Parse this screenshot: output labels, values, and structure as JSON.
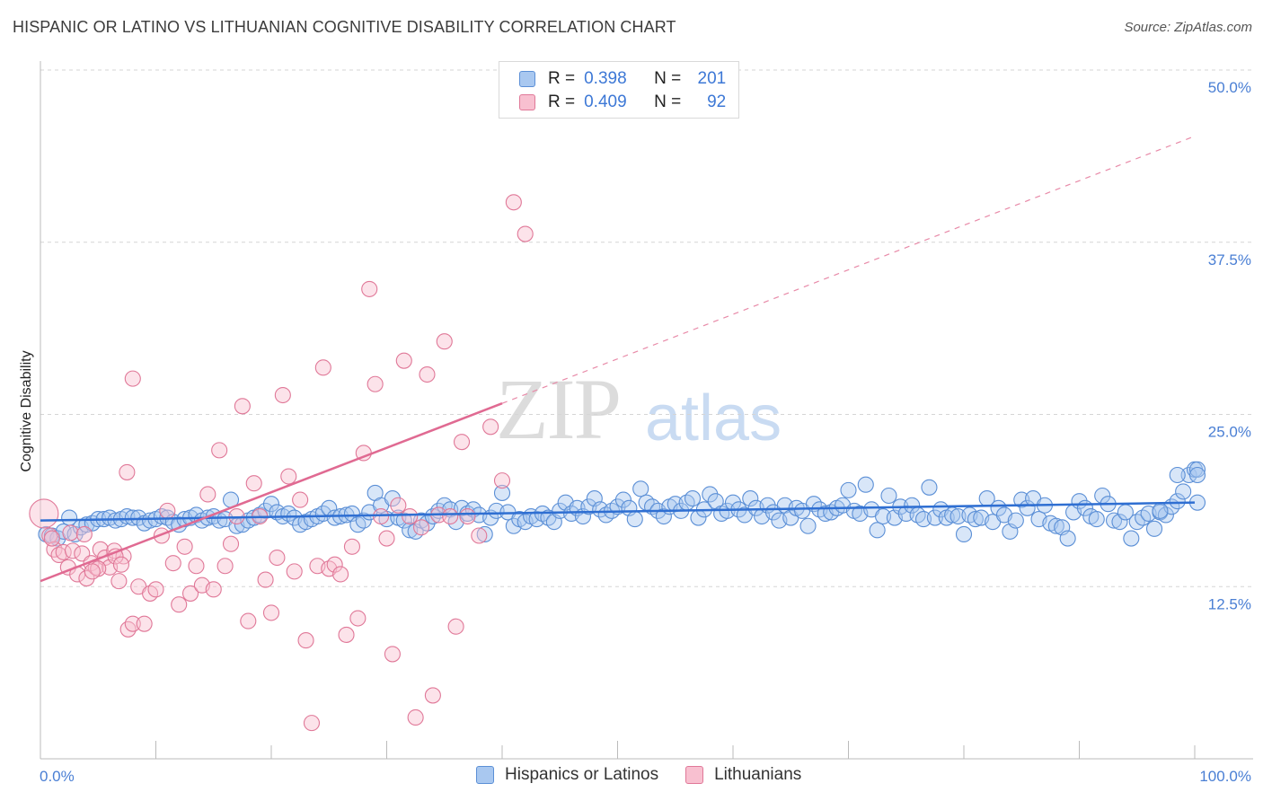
{
  "title": "HISPANIC OR LATINO VS LITHUANIAN COGNITIVE DISABILITY CORRELATION CHART",
  "source": "Source: ZipAtlas.com",
  "watermark": {
    "zip": "ZIP",
    "atlas": "atlas"
  },
  "legend": {
    "rows": [
      {
        "r_label": "R =",
        "r_value": "0.398",
        "n_label": "N =",
        "n_value": "201",
        "color": "#a9c8f0",
        "border": "#5b8fd6"
      },
      {
        "r_label": "R =",
        "r_value": "0.409",
        "n_label": "N =",
        "n_value": "92",
        "color": "#f8c0d0",
        "border": "#e07898"
      }
    ]
  },
  "bottom_legend": [
    {
      "label": "Hispanics or Latinos",
      "color": "#a9c8f0",
      "border": "#5b8fd6"
    },
    {
      "label": "Lithuanians",
      "color": "#f8c0d0",
      "border": "#e07898"
    }
  ],
  "chart_data": {
    "type": "scatter",
    "xlabel": "",
    "ylabel": "Cognitive Disability",
    "xlim": [
      0,
      100
    ],
    "ylim": [
      0,
      50
    ],
    "x_tick_labels": [
      "0.0%",
      "100.0%"
    ],
    "y_ticks": [
      12.5,
      25.0,
      37.5,
      50.0
    ],
    "y_tick_labels": [
      "12.5%",
      "25.0%",
      "37.5%",
      "50.0%"
    ],
    "grid": true,
    "series": [
      {
        "name": "Hispanics or Latinos",
        "color": "#5b8fd6",
        "fill": "rgba(169,200,240,0.45)",
        "trend": {
          "x0": 0,
          "y0": 17.3,
          "x1": 100,
          "y1": 18.6,
          "dashed_from": null
        },
        "points": [
          [
            0.5,
            16.3
          ],
          [
            1,
            16.2
          ],
          [
            1.5,
            16.0
          ],
          [
            2,
            16.5
          ],
          [
            2.5,
            17.5
          ],
          [
            3,
            16.3
          ],
          [
            3.5,
            16.8
          ],
          [
            4,
            17.0
          ],
          [
            4.5,
            17.1
          ],
          [
            5,
            17.4
          ],
          [
            5.5,
            17.4
          ],
          [
            6,
            17.5
          ],
          [
            6.5,
            17.3
          ],
          [
            7,
            17.4
          ],
          [
            7.5,
            17.6
          ],
          [
            8,
            17.5
          ],
          [
            8.5,
            17.5
          ],
          [
            9,
            17.1
          ],
          [
            9.5,
            17.3
          ],
          [
            10,
            17.4
          ],
          [
            10.5,
            17.6
          ],
          [
            11,
            17.5
          ],
          [
            11.5,
            17.2
          ],
          [
            12,
            17.0
          ],
          [
            12.5,
            17.4
          ],
          [
            13,
            17.5
          ],
          [
            13.5,
            17.7
          ],
          [
            14,
            17.3
          ],
          [
            14.5,
            17.5
          ],
          [
            15,
            17.6
          ],
          [
            15.5,
            17.3
          ],
          [
            16,
            17.4
          ],
          [
            16.5,
            18.8
          ],
          [
            17,
            16.9
          ],
          [
            17.5,
            17.0
          ],
          [
            18,
            17.3
          ],
          [
            18.5,
            17.5
          ],
          [
            19,
            17.7
          ],
          [
            19.5,
            18.0
          ],
          [
            20,
            18.5
          ],
          [
            20.5,
            17.9
          ],
          [
            21,
            17.6
          ],
          [
            21.5,
            17.8
          ],
          [
            22,
            17.5
          ],
          [
            22.5,
            17.0
          ],
          [
            23,
            17.2
          ],
          [
            23.5,
            17.4
          ],
          [
            24,
            17.6
          ],
          [
            24.5,
            17.8
          ],
          [
            25,
            18.2
          ],
          [
            25.5,
            17.5
          ],
          [
            26,
            17.6
          ],
          [
            26.5,
            17.7
          ],
          [
            27,
            17.8
          ],
          [
            27.5,
            17.0
          ],
          [
            28,
            17.3
          ],
          [
            28.5,
            17.9
          ],
          [
            29,
            19.3
          ],
          [
            29.5,
            18.4
          ],
          [
            30,
            17.4
          ],
          [
            30.5,
            18.9
          ],
          [
            31,
            17.5
          ],
          [
            31.5,
            17.3
          ],
          [
            32,
            16.6
          ],
          [
            32.5,
            16.5
          ],
          [
            33,
            17.3
          ],
          [
            33.5,
            17.1
          ],
          [
            34,
            17.6
          ],
          [
            34.5,
            18.0
          ],
          [
            35,
            18.4
          ],
          [
            35.5,
            18.1
          ],
          [
            36,
            17.2
          ],
          [
            36.5,
            18.2
          ],
          [
            37,
            17.8
          ],
          [
            37.5,
            18.1
          ],
          [
            38,
            17.7
          ],
          [
            38.5,
            16.3
          ],
          [
            39,
            17.5
          ],
          [
            39.5,
            18.0
          ],
          [
            40,
            19.3
          ],
          [
            40.5,
            17.9
          ],
          [
            41,
            16.9
          ],
          [
            41.5,
            17.4
          ],
          [
            42,
            17.2
          ],
          [
            42.5,
            17.6
          ],
          [
            43,
            17.4
          ],
          [
            43.5,
            17.8
          ],
          [
            44,
            17.5
          ],
          [
            44.5,
            17.2
          ],
          [
            45,
            18.0
          ],
          [
            45.5,
            18.6
          ],
          [
            46,
            17.8
          ],
          [
            46.5,
            18.2
          ],
          [
            47,
            17.6
          ],
          [
            47.5,
            18.3
          ],
          [
            48,
            18.9
          ],
          [
            48.5,
            18.1
          ],
          [
            49,
            17.7
          ],
          [
            49.5,
            18.0
          ],
          [
            50,
            18.3
          ],
          [
            50.5,
            18.8
          ],
          [
            51,
            18.2
          ],
          [
            51.5,
            17.4
          ],
          [
            52,
            19.6
          ],
          [
            52.5,
            18.6
          ],
          [
            53,
            18.3
          ],
          [
            53.5,
            18.0
          ],
          [
            54,
            17.6
          ],
          [
            54.5,
            18.3
          ],
          [
            55,
            18.5
          ],
          [
            55.5,
            18.0
          ],
          [
            56,
            18.6
          ],
          [
            56.5,
            18.9
          ],
          [
            57,
            17.5
          ],
          [
            57.5,
            18.1
          ],
          [
            58,
            19.2
          ],
          [
            58.5,
            18.7
          ],
          [
            59,
            17.8
          ],
          [
            59.5,
            18.0
          ],
          [
            60,
            18.6
          ],
          [
            60.5,
            18.1
          ],
          [
            61,
            17.7
          ],
          [
            61.5,
            18.9
          ],
          [
            62,
            18.2
          ],
          [
            62.5,
            17.6
          ],
          [
            63,
            18.4
          ],
          [
            63.5,
            17.9
          ],
          [
            64,
            17.3
          ],
          [
            64.5,
            18.4
          ],
          [
            65,
            17.5
          ],
          [
            65.5,
            18.2
          ],
          [
            66,
            18.0
          ],
          [
            66.5,
            16.9
          ],
          [
            67,
            18.5
          ],
          [
            67.5,
            18.1
          ],
          [
            68,
            17.8
          ],
          [
            68.5,
            17.9
          ],
          [
            69,
            18.2
          ],
          [
            69.5,
            18.4
          ],
          [
            70,
            19.5
          ],
          [
            70.5,
            18.0
          ],
          [
            71,
            17.8
          ],
          [
            71.5,
            19.9
          ],
          [
            72,
            18.1
          ],
          [
            72.5,
            16.6
          ],
          [
            73,
            17.6
          ],
          [
            73.5,
            19.1
          ],
          [
            74,
            17.5
          ],
          [
            74.5,
            18.3
          ],
          [
            75,
            17.8
          ],
          [
            75.5,
            18.4
          ],
          [
            76,
            17.7
          ],
          [
            76.5,
            17.4
          ],
          [
            77,
            19.7
          ],
          [
            77.5,
            17.5
          ],
          [
            78,
            18.1
          ],
          [
            78.5,
            17.5
          ],
          [
            79,
            17.7
          ],
          [
            79.5,
            17.6
          ],
          [
            80,
            16.3
          ],
          [
            80.5,
            17.7
          ],
          [
            81,
            17.4
          ],
          [
            81.5,
            17.5
          ],
          [
            82,
            18.9
          ],
          [
            82.5,
            17.2
          ],
          [
            83,
            18.2
          ],
          [
            83.5,
            17.7
          ],
          [
            84,
            16.5
          ],
          [
            84.5,
            17.3
          ],
          [
            85,
            18.8
          ],
          [
            85.5,
            18.2
          ],
          [
            86,
            18.9
          ],
          [
            86.5,
            17.4
          ],
          [
            87,
            18.4
          ],
          [
            87.5,
            17.1
          ],
          [
            88,
            16.9
          ],
          [
            88.5,
            16.8
          ],
          [
            89,
            16.0
          ],
          [
            89.5,
            17.9
          ],
          [
            90,
            18.7
          ],
          [
            90.5,
            18.2
          ],
          [
            91,
            17.6
          ],
          [
            91.5,
            17.4
          ],
          [
            92,
            19.1
          ],
          [
            92.5,
            18.5
          ],
          [
            93,
            17.3
          ],
          [
            93.5,
            17.2
          ],
          [
            94,
            17.9
          ],
          [
            94.5,
            16.0
          ],
          [
            95,
            17.2
          ],
          [
            95.5,
            17.5
          ],
          [
            96,
            17.8
          ],
          [
            96.5,
            16.7
          ],
          [
            97,
            17.9
          ],
          [
            97.5,
            17.7
          ],
          [
            98,
            18.3
          ],
          [
            98.5,
            18.7
          ],
          [
            99,
            19.4
          ],
          [
            99.5,
            20.6
          ],
          [
            100,
            21.0
          ],
          [
            100.5,
            21.0
          ],
          [
            101,
            20.6
          ],
          [
            101.5,
            18.6
          ],
          [
            97,
            18.0
          ],
          [
            98.5,
            20.6
          ]
        ]
      },
      {
        "name": "Lithuanians",
        "color": "#e07898",
        "fill": "rgba(248,192,208,0.45)",
        "trend": {
          "x0": 0,
          "y0": 12.9,
          "x1": 40,
          "y1": 25.8,
          "dashed_to_x": 100,
          "dashed_to_y": 45.2
        },
        "points": [
          [
            0.3,
            17.8
          ],
          [
            0.8,
            16.2
          ],
          [
            1.2,
            15.2
          ],
          [
            1.6,
            14.8
          ],
          [
            2.0,
            15.0
          ],
          [
            2.4,
            13.9
          ],
          [
            2.8,
            15.1
          ],
          [
            3.2,
            13.4
          ],
          [
            3.6,
            14.9
          ],
          [
            4.0,
            13.1
          ],
          [
            4.4,
            14.2
          ],
          [
            4.8,
            13.9
          ],
          [
            5.2,
            15.2
          ],
          [
            5.6,
            14.6
          ],
          [
            6.0,
            13.9
          ],
          [
            6.4,
            15.1
          ],
          [
            6.8,
            12.9
          ],
          [
            7.2,
            14.7
          ],
          [
            7.6,
            9.4
          ],
          [
            8.0,
            9.8
          ],
          [
            5.0,
            13.8
          ],
          [
            6.5,
            14.7
          ],
          [
            7.0,
            14.1
          ],
          [
            7.5,
            20.8
          ],
          [
            8.0,
            27.6
          ],
          [
            8.5,
            12.5
          ],
          [
            9.0,
            9.8
          ],
          [
            9.5,
            12.0
          ],
          [
            10,
            12.3
          ],
          [
            10.5,
            16.2
          ],
          [
            11,
            18.0
          ],
          [
            11.5,
            14.2
          ],
          [
            12,
            11.2
          ],
          [
            12.5,
            15.4
          ],
          [
            13,
            12.0
          ],
          [
            13.5,
            14.0
          ],
          [
            14,
            12.6
          ],
          [
            14.5,
            19.2
          ],
          [
            15,
            12.3
          ],
          [
            15.5,
            22.4
          ],
          [
            16,
            14.0
          ],
          [
            16.5,
            15.6
          ],
          [
            17,
            17.6
          ],
          [
            17.5,
            25.6
          ],
          [
            18,
            10.0
          ],
          [
            18.5,
            20.0
          ],
          [
            19,
            17.6
          ],
          [
            19.5,
            13.0
          ],
          [
            20,
            10.6
          ],
          [
            20.5,
            14.6
          ],
          [
            21,
            26.4
          ],
          [
            21.5,
            20.5
          ],
          [
            22,
            13.6
          ],
          [
            22.5,
            18.8
          ],
          [
            23,
            8.6
          ],
          [
            23.5,
            2.6
          ],
          [
            24,
            14.0
          ],
          [
            24.5,
            28.4
          ],
          [
            25,
            13.8
          ],
          [
            25.5,
            14.1
          ],
          [
            26,
            13.4
          ],
          [
            26.5,
            9.0
          ],
          [
            27,
            15.4
          ],
          [
            27.5,
            10.2
          ],
          [
            28,
            22.2
          ],
          [
            28.5,
            34.1
          ],
          [
            29,
            27.2
          ],
          [
            29.5,
            17.6
          ],
          [
            30,
            16.0
          ],
          [
            30.5,
            7.6
          ],
          [
            31,
            18.4
          ],
          [
            31.5,
            28.9
          ],
          [
            32,
            17.6
          ],
          [
            32.5,
            3.0
          ],
          [
            33,
            16.8
          ],
          [
            33.5,
            27.9
          ],
          [
            34,
            4.6
          ],
          [
            34.5,
            17.7
          ],
          [
            35,
            30.3
          ],
          [
            35.5,
            17.6
          ],
          [
            36,
            9.6
          ],
          [
            36.5,
            23.0
          ],
          [
            37,
            17.6
          ],
          [
            38,
            16.2
          ],
          [
            39,
            24.1
          ],
          [
            40,
            20.2
          ],
          [
            41,
            40.4
          ],
          [
            42,
            38.1
          ],
          [
            2.6,
            16.4
          ],
          [
            3.8,
            16.3
          ],
          [
            1.0,
            16.0
          ],
          [
            4.5,
            13.6
          ]
        ]
      }
    ]
  }
}
